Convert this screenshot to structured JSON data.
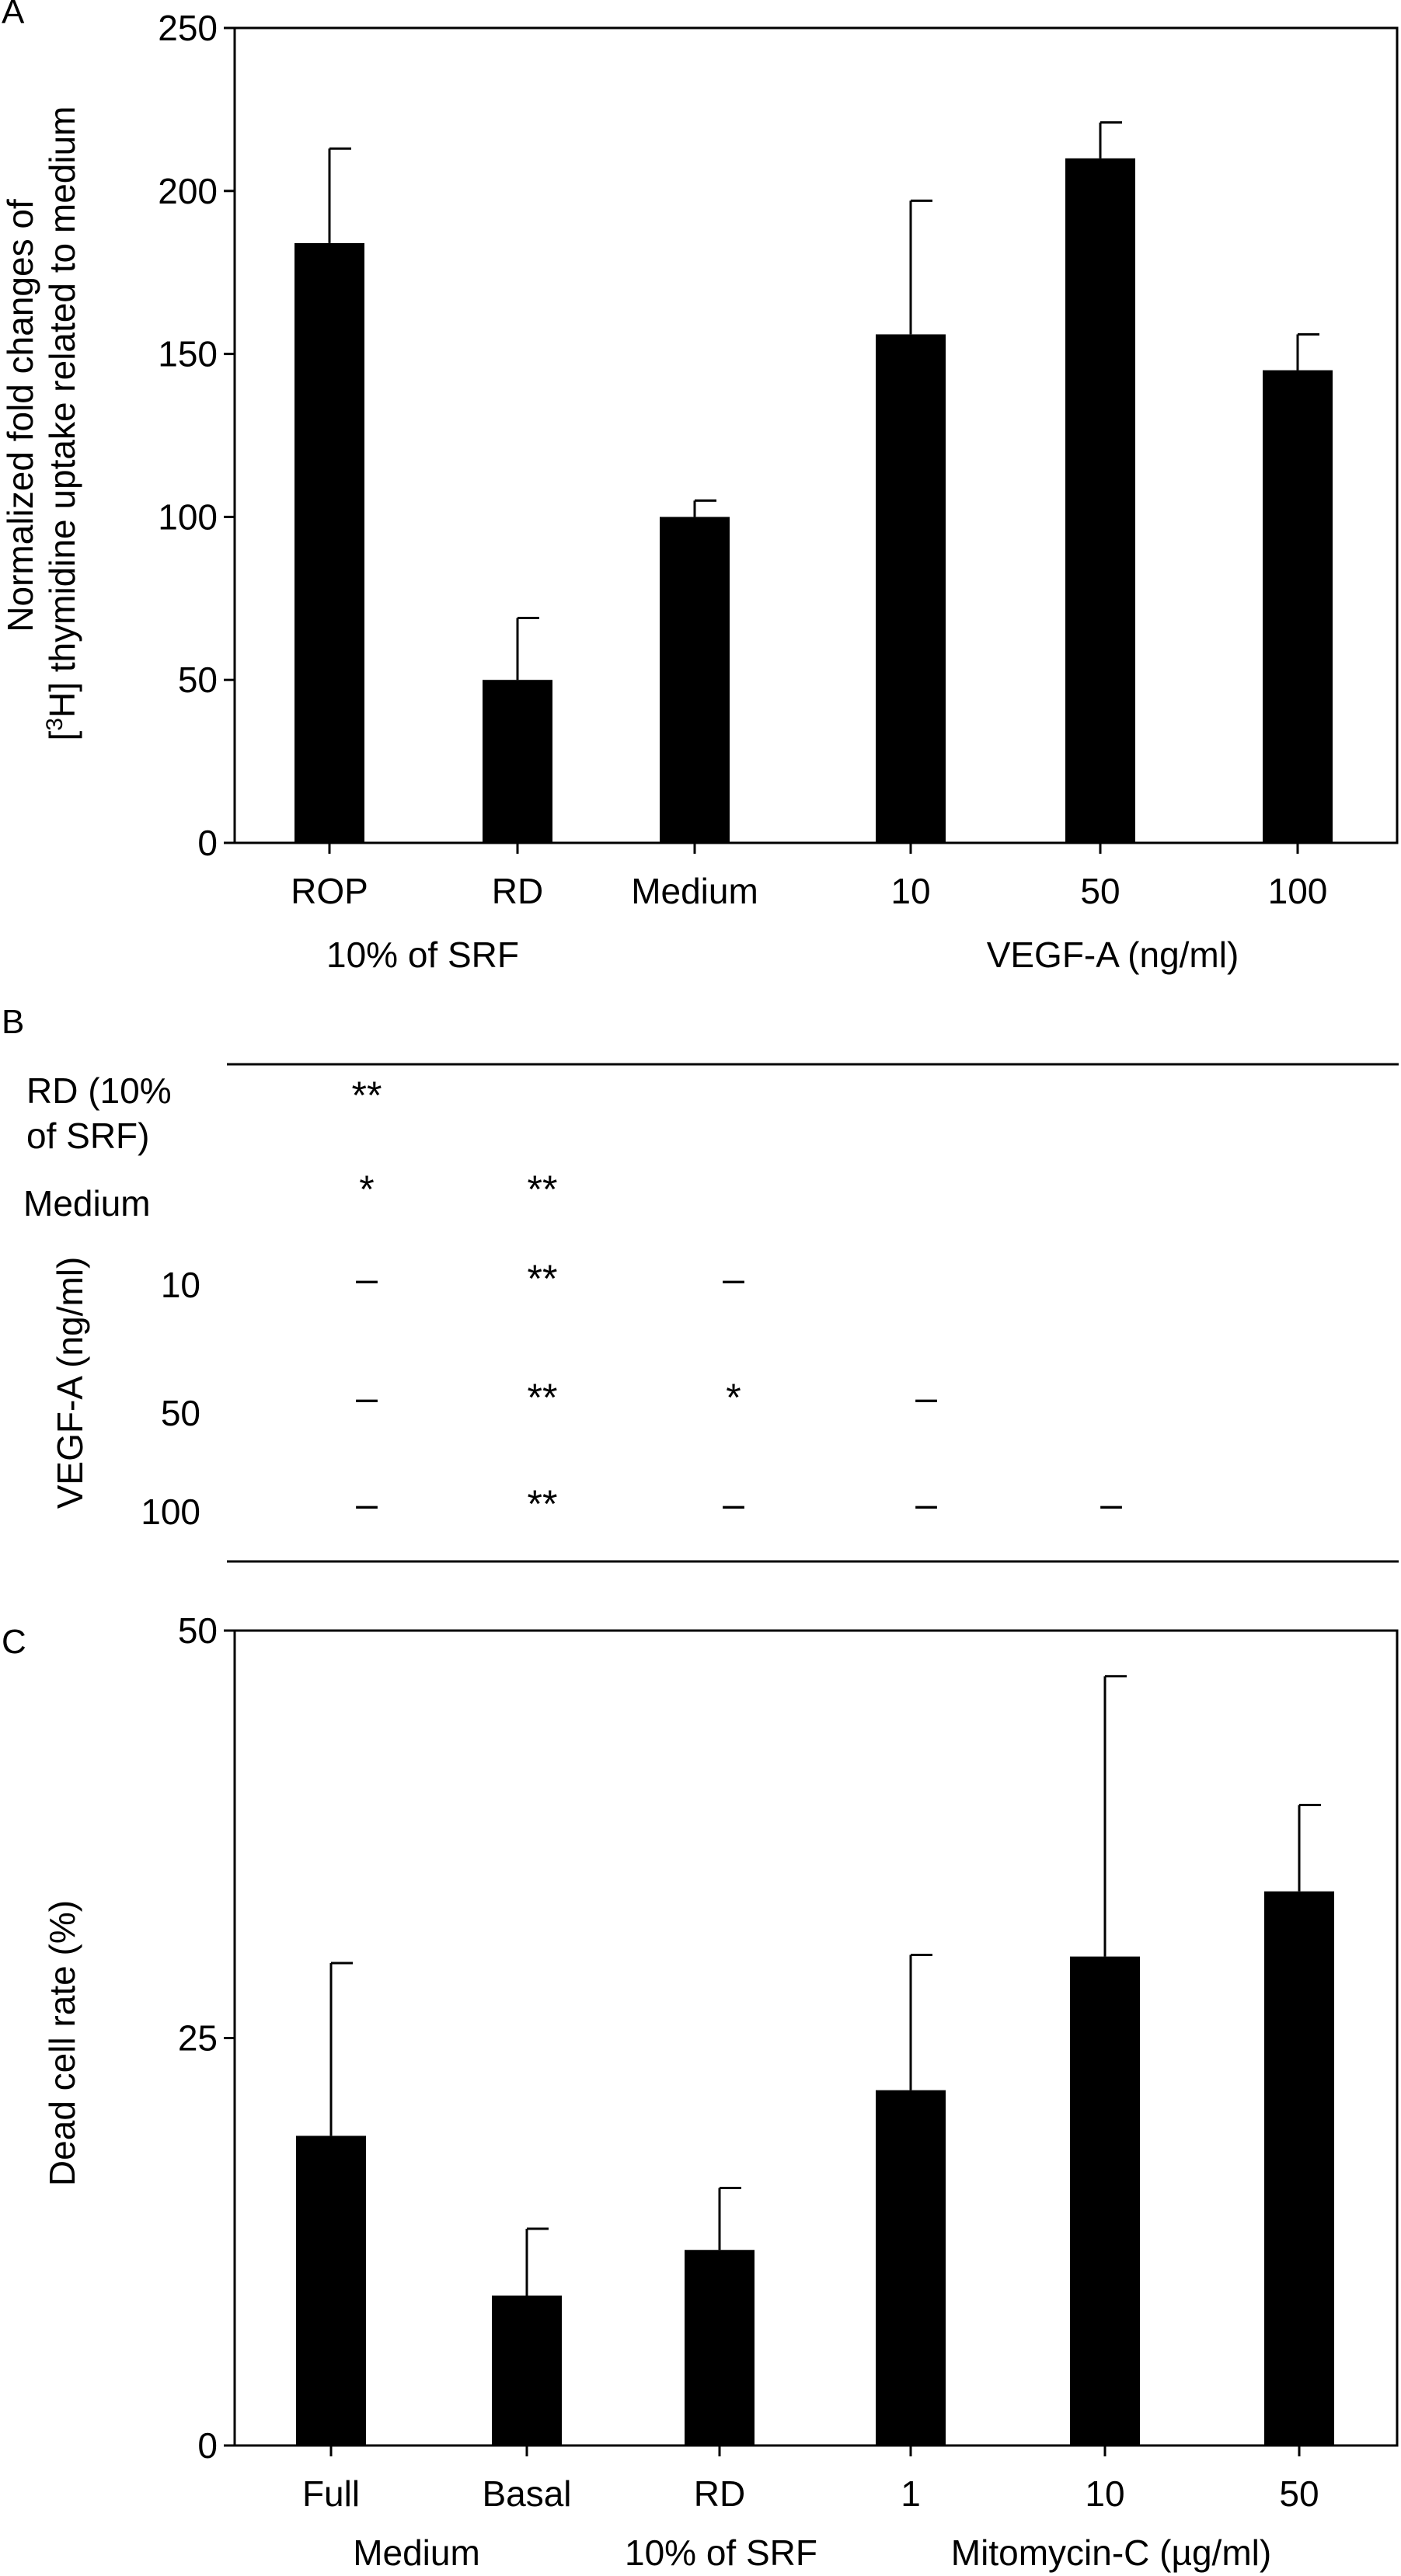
{
  "panel_labels": {
    "a": "A",
    "b": "B",
    "c": "C"
  },
  "colors": {
    "bar": "#000000",
    "axis": "#000000",
    "background": "#ffffff"
  },
  "chart_data": [
    {
      "type": "bar",
      "panel": "A",
      "ylabel_line1": "Normalized fold changes of",
      "ylabel_line2_pre": "[",
      "ylabel_line2_sup": "3",
      "ylabel_line2_post": "H] thymidine uptake related to medium",
      "ylim": [
        0,
        250
      ],
      "yticks": [
        0,
        50,
        100,
        150,
        200,
        250
      ],
      "categories": [
        "ROP",
        "RD",
        "Medium",
        "10",
        "50",
        "100"
      ],
      "values": [
        184,
        50,
        100,
        156,
        210,
        145
      ],
      "errors": [
        29,
        19,
        5,
        41,
        11,
        11
      ],
      "group_labels": [
        "10% of SRF",
        "VEGF-A (ng/ml)"
      ],
      "grid": false
    },
    {
      "type": "table",
      "panel": "B",
      "row_labels": [
        "RD (10%",
        "of SRF)",
        "Medium",
        "10",
        "50",
        "100"
      ],
      "side_label": "VEGF-A (ng/ml)",
      "rows": [
        [
          "**"
        ],
        [
          "*",
          "**"
        ],
        [
          "–",
          "**",
          "–"
        ],
        [
          "–",
          "**",
          "*",
          "–"
        ],
        [
          "–",
          "**",
          "–",
          "–",
          "–"
        ]
      ]
    },
    {
      "type": "bar",
      "panel": "C",
      "ylabel": "Dead cell rate (%)",
      "ylim": [
        0,
        50
      ],
      "yticks": [
        0,
        25,
        50
      ],
      "categories": [
        "Full",
        "Basal",
        "RD",
        "1",
        "10",
        "50"
      ],
      "values": [
        19,
        9.2,
        12,
        21.8,
        30,
        34
      ],
      "errors": [
        10.6,
        4.1,
        3.8,
        8.3,
        17.2,
        5.3
      ],
      "group_labels": [
        "Medium",
        "10% of SRF",
        "Mitomycin-C (µg/ml)"
      ],
      "grid": false
    }
  ]
}
